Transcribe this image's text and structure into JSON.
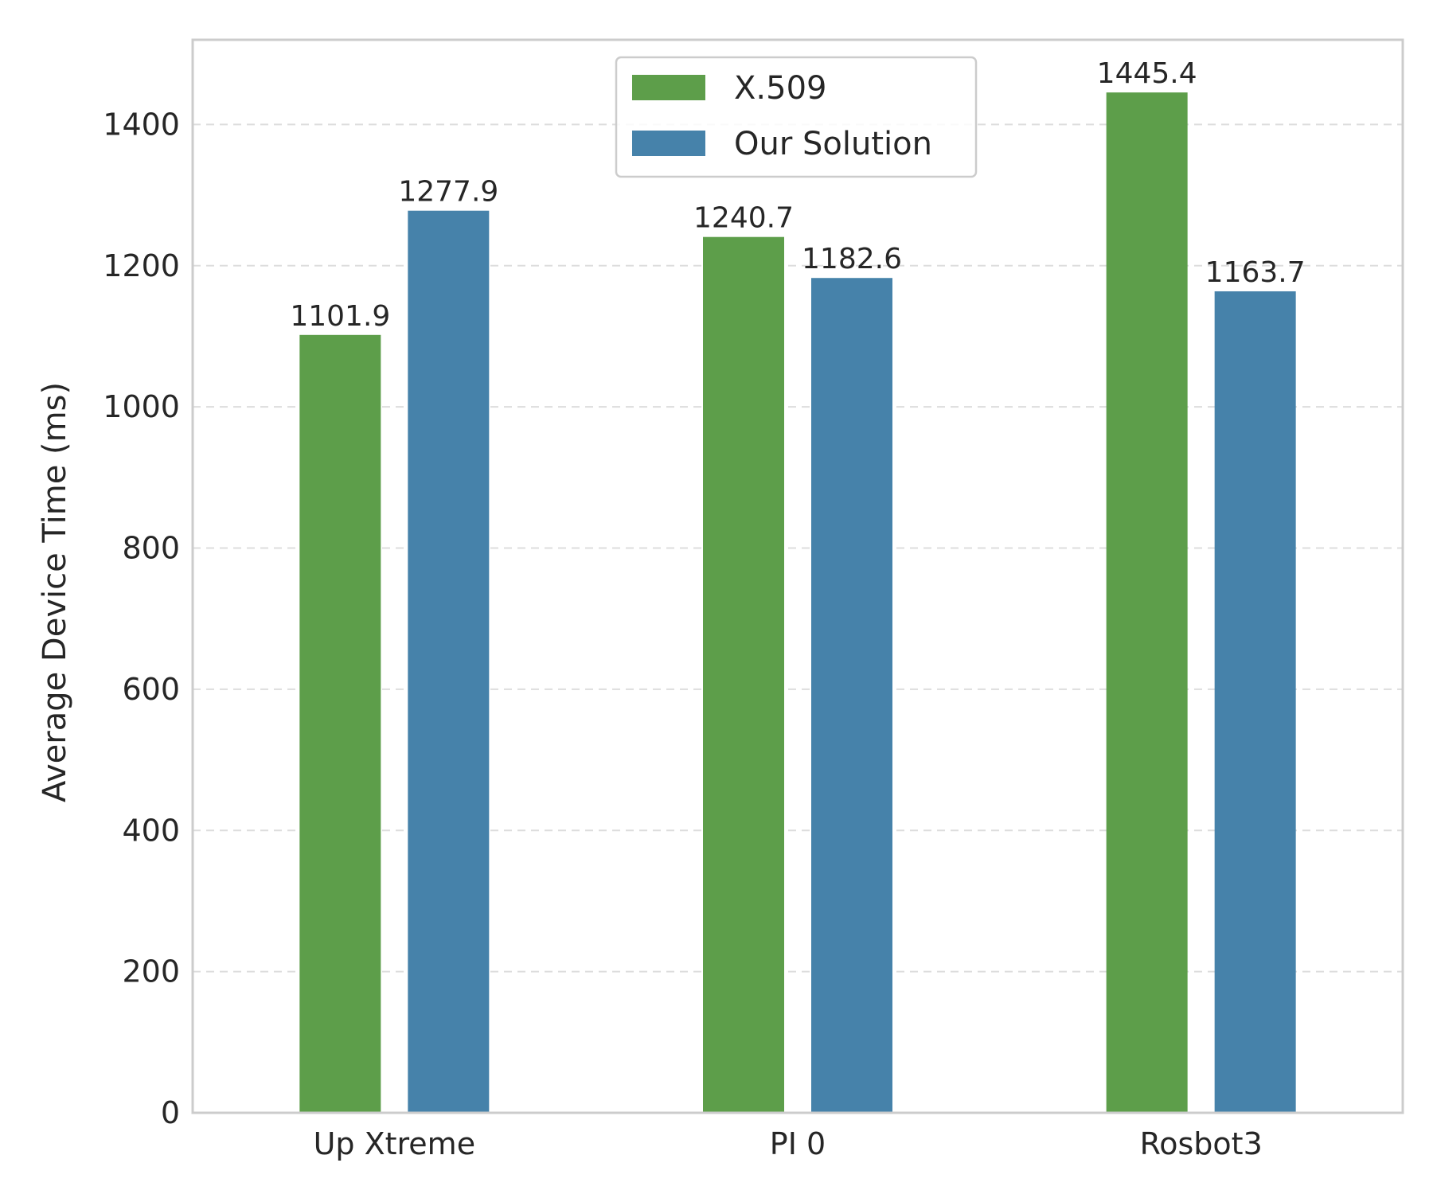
{
  "chart_data": {
    "type": "bar",
    "title": "",
    "xlabel": "",
    "ylabel": "Average Device Time (ms)",
    "ylim": [
      0,
      1520
    ],
    "yticks": [
      0,
      200,
      400,
      600,
      800,
      1000,
      1200,
      1400
    ],
    "grid": "y-dashed",
    "legend_position": "top-center",
    "categories": [
      "Up Xtreme",
      "PI 0",
      "Rosbot3"
    ],
    "series": [
      {
        "name": "X.509",
        "color": "#5d9e4a",
        "values": [
          1101.9,
          1240.7,
          1445.4
        ],
        "labels": [
          "1101.9",
          "1240.7",
          "1445.4"
        ]
      },
      {
        "name": "Our Solution",
        "color": "#4682aa",
        "values": [
          1277.9,
          1182.6,
          1163.7
        ],
        "labels": [
          "1277.9",
          "1182.6",
          "1163.7"
        ]
      }
    ]
  }
}
